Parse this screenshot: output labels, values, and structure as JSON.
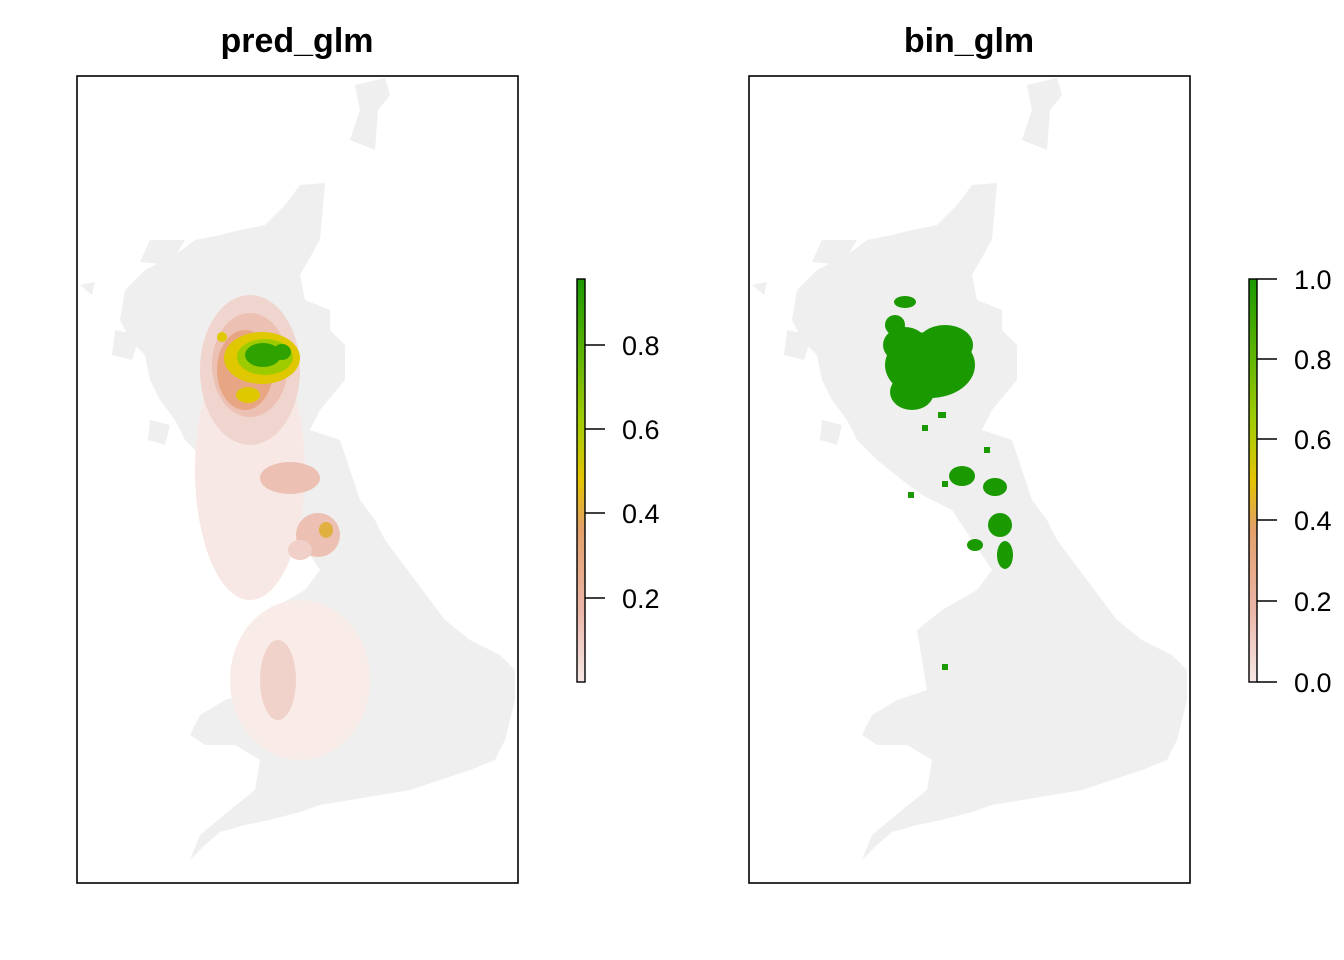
{
  "panels": [
    {
      "title": "pred_glm",
      "legend": {
        "ticks": [
          {
            "value": 0.2,
            "label": "0.2"
          },
          {
            "value": 0.4,
            "label": "0.4"
          },
          {
            "value": 0.6,
            "label": "0.6"
          },
          {
            "value": 0.8,
            "label": "0.8"
          }
        ],
        "range": [
          0.0,
          0.96
        ]
      },
      "type": "continuous-probability"
    },
    {
      "title": "bin_glm",
      "legend": {
        "ticks": [
          {
            "value": 0.0,
            "label": "0.0"
          },
          {
            "value": 0.2,
            "label": "0.2"
          },
          {
            "value": 0.4,
            "label": "0.4"
          },
          {
            "value": 0.6,
            "label": "0.6"
          },
          {
            "value": 0.8,
            "label": "0.8"
          },
          {
            "value": 1.0,
            "label": "1.0"
          }
        ],
        "range": [
          0.0,
          1.0
        ]
      },
      "type": "binary"
    }
  ],
  "colors": {
    "background_land": "#efefef",
    "low": "#f5e6e4",
    "mid_low": "#e8a583",
    "mid": "#e0c000",
    "mid_high": "#8cc100",
    "high": "#1a9a00"
  },
  "color_stops": [
    "#f6e8e6",
    "#ebb5a8",
    "#e3a06a",
    "#e4c400",
    "#a2cc00",
    "#5bb300",
    "#1a9a00"
  ]
}
